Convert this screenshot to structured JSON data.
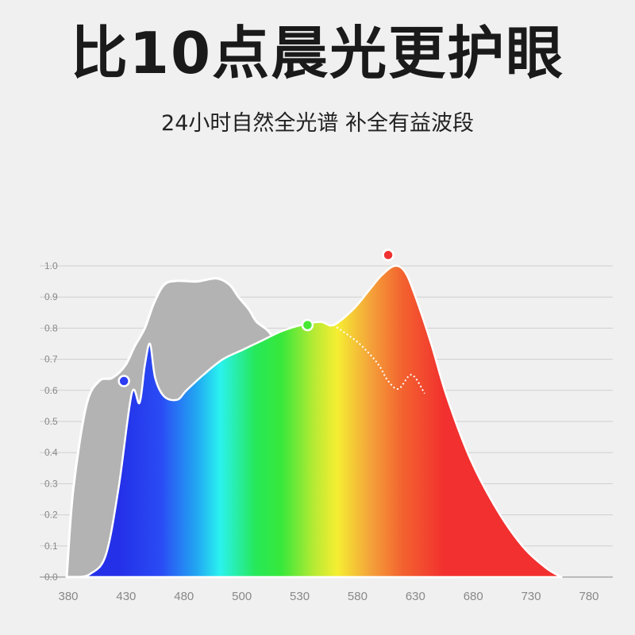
{
  "header": {
    "title": "比10点晨光更护眼",
    "subtitle": "24小时自然全光谱 补全有益波段"
  },
  "chart_data": {
    "type": "area",
    "xlim": [
      380,
      780
    ],
    "ylim": [
      0,
      1.0
    ],
    "grid": true,
    "x_tick_labels": [
      "380",
      "430",
      "480",
      "500",
      "530",
      "580",
      "630",
      "680",
      "730",
      "780"
    ],
    "y_tick_labels": [
      "0.0",
      "0.1",
      "0.2",
      "0.3",
      "0.4",
      "0.5",
      "0.6",
      "0.7",
      "0.8",
      "0.9",
      "1.0"
    ],
    "series": [
      {
        "color": "#b3b3b3",
        "points": [
          [
            380,
            0.0
          ],
          [
            385,
            0.28
          ],
          [
            395,
            0.55
          ],
          [
            405,
            0.63
          ],
          [
            415,
            0.64
          ],
          [
            425,
            0.68
          ],
          [
            432,
            0.74
          ],
          [
            440,
            0.8
          ],
          [
            447,
            0.88
          ],
          [
            455,
            0.94
          ],
          [
            465,
            0.952
          ],
          [
            480,
            0.95
          ],
          [
            495,
            0.96
          ],
          [
            505,
            0.94
          ],
          [
            512,
            0.9
          ],
          [
            520,
            0.86
          ],
          [
            526,
            0.82
          ],
          [
            535,
            0.79
          ],
          [
            545,
            0.73
          ],
          [
            552,
            0.67
          ],
          [
            560,
            0.63
          ],
          [
            570,
            0.63
          ],
          [
            580,
            0.61
          ],
          [
            585,
            0.55
          ],
          [
            600,
            0.52
          ],
          [
            612,
            0.52
          ],
          [
            625,
            0.44
          ],
          [
            635,
            0.42
          ],
          [
            640,
            0.44
          ],
          [
            645,
            0.46
          ],
          [
            650,
            0.43
          ],
          [
            657,
            0.34
          ],
          [
            662,
            0.32
          ],
          [
            667,
            0.33
          ],
          [
            672,
            0.385
          ],
          [
            678,
            0.18
          ],
          [
            680,
            0.0
          ]
        ]
      },
      {
        "points": [
          [
            388,
            0.0
          ],
          [
            398,
            0.01
          ],
          [
            410,
            0.07
          ],
          [
            420,
            0.29
          ],
          [
            430,
            0.59
          ],
          [
            436,
            0.56
          ],
          [
            440,
            0.68
          ],
          [
            444,
            0.75
          ],
          [
            448,
            0.64
          ],
          [
            455,
            0.58
          ],
          [
            465,
            0.57
          ],
          [
            472,
            0.6
          ],
          [
            485,
            0.65
          ],
          [
            500,
            0.7
          ],
          [
            515,
            0.73
          ],
          [
            530,
            0.76
          ],
          [
            545,
            0.79
          ],
          [
            560,
            0.81
          ],
          [
            575,
            0.82
          ],
          [
            585,
            0.81
          ],
          [
            600,
            0.86
          ],
          [
            612,
            0.92
          ],
          [
            622,
            0.97
          ],
          [
            632,
            1.0
          ],
          [
            640,
            0.98
          ],
          [
            648,
            0.9
          ],
          [
            660,
            0.75
          ],
          [
            672,
            0.58
          ],
          [
            690,
            0.38
          ],
          [
            710,
            0.22
          ],
          [
            730,
            0.1
          ],
          [
            748,
            0.03
          ],
          [
            760,
            0.0
          ]
        ]
      }
    ],
    "dotted_line": [
      [
        585,
        0.81
      ],
      [
        602,
        0.76
      ],
      [
        612,
        0.72
      ],
      [
        620,
        0.68
      ],
      [
        627,
        0.63
      ],
      [
        635,
        0.605
      ],
      [
        645,
        0.65
      ],
      [
        655,
        0.59
      ]
    ],
    "markers": [
      {
        "x": 424,
        "y": 0.63,
        "color": "#2b3cf2"
      },
      {
        "x": 565,
        "y": 0.81,
        "color": "#46e832"
      },
      {
        "x": 627,
        "y": 1.035,
        "color": "#f03232"
      }
    ]
  }
}
